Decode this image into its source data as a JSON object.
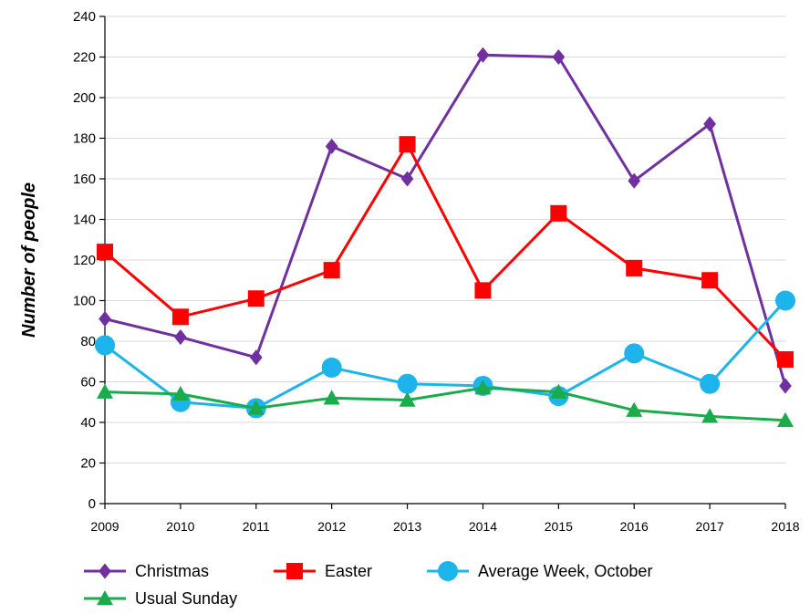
{
  "chart_data": {
    "type": "line",
    "categories": [
      "2009",
      "2010",
      "2011",
      "2012",
      "2013",
      "2014",
      "2015",
      "2016",
      "2017",
      "2018"
    ],
    "ylabel": "Number of people",
    "xlabel": "",
    "title": "",
    "ylim": [
      0,
      240
    ],
    "y_ticks": [
      "0",
      "20",
      "40",
      "60",
      "80",
      "100",
      "120",
      "140",
      "160",
      "180",
      "200",
      "220",
      "240"
    ],
    "grid": "horizontal",
    "legend_position": "bottom",
    "series": [
      {
        "name": "Christmas",
        "color": "#7030a0",
        "marker": "diamond",
        "values": [
          91,
          82,
          72,
          176,
          160,
          221,
          220,
          159,
          187,
          58
        ]
      },
      {
        "name": "Easter",
        "color": "#ff0000",
        "marker": "square",
        "values": [
          124,
          92,
          101,
          115,
          177,
          105,
          143,
          116,
          110,
          71
        ]
      },
      {
        "name": "Average Week, October",
        "color": "#1cb4ea",
        "marker": "circle",
        "values": [
          78,
          50,
          47,
          67,
          59,
          58,
          53,
          74,
          59,
          100
        ]
      },
      {
        "name": "Usual Sunday",
        "color": "#1aab4b",
        "marker": "triangle",
        "values": [
          55,
          54,
          47,
          52,
          51,
          57,
          55,
          46,
          43,
          41
        ]
      }
    ]
  }
}
